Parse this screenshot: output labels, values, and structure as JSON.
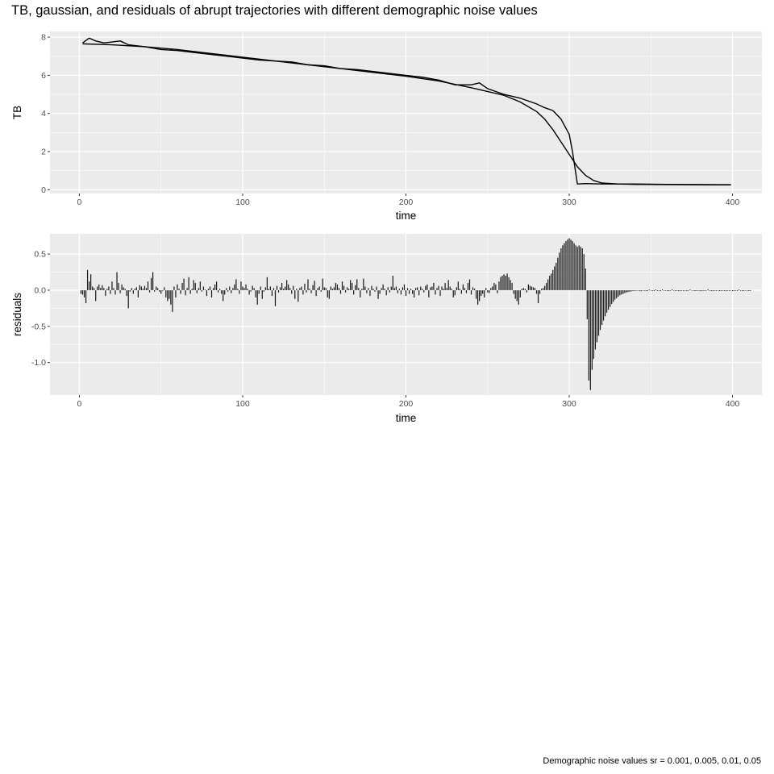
{
  "figure": {
    "title": "TB, gaussian, and residuals of abrupt trajectories with different demographic noise values",
    "caption": "Demographic noise values sr = 0.001, 0.005, 0.01, 0.05"
  },
  "colors": {
    "panel_bg": "#ebebeb",
    "grid_major": "#ffffff",
    "line": "#000000",
    "tick_text": "#4d4d4d"
  },
  "chart_data": [
    {
      "type": "line",
      "xlabel": "time",
      "ylabel": "TB",
      "xlim": [
        -18,
        418
      ],
      "ylim": [
        -0.2,
        8.3
      ],
      "xticks": [
        0,
        100,
        200,
        300,
        400
      ],
      "yticks": [
        0,
        2,
        4,
        6,
        8
      ],
      "grid": true,
      "series": [
        {
          "style": "observed",
          "x": [
            2,
            6,
            10,
            15,
            20,
            25,
            30,
            40,
            50,
            60,
            70,
            80,
            90,
            100,
            110,
            120,
            130,
            140,
            150,
            160,
            170,
            180,
            190,
            200,
            210,
            220,
            230,
            240,
            245,
            250,
            255,
            260,
            270,
            280,
            285,
            290,
            295,
            300,
            302,
            305,
            310,
            320,
            340,
            360,
            380,
            399
          ],
          "y": [
            7.7,
            7.95,
            7.8,
            7.7,
            7.75,
            7.8,
            7.6,
            7.5,
            7.35,
            7.3,
            7.2,
            7.1,
            7.0,
            6.9,
            6.8,
            6.75,
            6.7,
            6.55,
            6.5,
            6.35,
            6.3,
            6.2,
            6.1,
            6.0,
            5.9,
            5.75,
            5.5,
            5.5,
            5.6,
            5.3,
            5.15,
            5.0,
            4.8,
            4.5,
            4.3,
            4.15,
            3.7,
            2.9,
            2.0,
            0.3,
            0.32,
            0.3,
            0.3,
            0.28,
            0.27,
            0.26
          ]
        },
        {
          "style": "gaussian",
          "x": [
            2,
            20,
            40,
            60,
            80,
            100,
            120,
            140,
            160,
            180,
            200,
            220,
            240,
            260,
            270,
            280,
            285,
            290,
            295,
            300,
            305,
            310,
            315,
            320,
            330,
            340,
            360,
            380,
            399
          ],
          "y": [
            7.65,
            7.6,
            7.5,
            7.35,
            7.15,
            6.95,
            6.75,
            6.55,
            6.35,
            6.15,
            5.95,
            5.7,
            5.35,
            4.95,
            4.6,
            4.1,
            3.7,
            3.15,
            2.5,
            1.85,
            1.2,
            0.75,
            0.48,
            0.35,
            0.3,
            0.28,
            0.27,
            0.26,
            0.25
          ]
        }
      ]
    },
    {
      "type": "bar",
      "xlabel": "time",
      "ylabel": "residuals",
      "xlim": [
        -18,
        418
      ],
      "ylim": [
        -1.45,
        0.78
      ],
      "xticks": [
        0,
        100,
        200,
        300,
        400
      ],
      "yticks": [
        -1.0,
        -0.5,
        0.0,
        0.5
      ],
      "ytick_labels": [
        "-1.0",
        "-0.5",
        "0.0",
        "0.5"
      ],
      "grid": true,
      "x_start": 1,
      "values": [
        -0.05,
        -0.06,
        -0.1,
        -0.18,
        0.28,
        0.12,
        0.22,
        0.05,
        0.03,
        -0.15,
        0.05,
        0.08,
        0.03,
        0.07,
        0.03,
        -0.08,
        0.02,
        0.05,
        -0.05,
        0.12,
        0.03,
        -0.06,
        0.25,
        0.1,
        -0.04,
        0.08,
        0.04,
        0.02,
        -0.08,
        -0.25,
        -0.02,
        0.03,
        -0.05,
        0.02,
        0.04,
        -0.1,
        0.07,
        0.05,
        0.02,
        0.06,
        0.03,
        0.12,
        -0.03,
        0.17,
        0.25,
        -0.02,
        0.05,
        0.03,
        -0.02,
        -0.05,
        -0.01,
        0.04,
        -0.1,
        -0.15,
        -0.12,
        -0.2,
        -0.3,
        0.05,
        -0.1,
        0.08,
        0.02,
        -0.05,
        0.1,
        0.16,
        -0.07,
        0.03,
        0.18,
        -0.05,
        0.02,
        0.14,
        0.1,
        -0.04,
        0.03,
        0.12,
        -0.02,
        0.05,
        0.01,
        -0.08,
        0.02,
        0.05,
        -0.1,
        0.03,
        0.08,
        0.12,
        -0.03,
        0.02,
        -0.05,
        -0.15,
        -0.06,
        0.03,
        -0.02,
        0.05,
        -0.04,
        0.03,
        0.08,
        0.15,
        0.02,
        -0.05,
        0.12,
        0.05,
        0.03,
        0.08,
        0.02,
        -0.06,
        -0.02,
        0.06,
        0.03,
        -0.1,
        -0.2,
        -0.05,
        0.05,
        -0.12,
        -0.02,
        0.04,
        0.18,
        0.02,
        0.05,
        -0.08,
        0.03,
        -0.22,
        0.06,
        -0.03,
        0.04,
        0.1,
        0.02,
        0.05,
        0.14,
        0.08,
        0.03,
        -0.05,
        0.06,
        -0.12,
        0.02,
        -0.16,
        0.03,
        0.05,
        -0.06,
        0.09,
        -0.03,
        0.15,
        0.02,
        -0.04,
        0.07,
        0.13,
        -0.08,
        0.03,
        0.05,
        -0.02,
        0.16,
        0.04,
        0.03,
        -0.1,
        -0.12,
        0.05,
        0.02,
        0.04,
        0.1,
        0.08,
        0.03,
        -0.05,
        0.12,
        0.06,
        -0.03,
        0.04,
        0.02,
        0.14,
        0.1,
        -0.06,
        0.07,
        0.15,
        0.03,
        -0.1,
        0.02,
        0.16,
        0.05,
        -0.04,
        0.03,
        -0.08,
        0.06,
        0.02,
        -0.02,
        0.05,
        -0.12,
        -0.05,
        0.03,
        0.08,
        0.02,
        -0.07,
        0.04,
        -0.03,
        0.05,
        0.2,
        0.03,
        0.05,
        -0.04,
        0.02,
        -0.06,
        0.04,
        0.08,
        -0.08,
        0.03,
        -0.05,
        0.02,
        -0.05,
        -0.1,
        0.03,
        0.04,
        -0.07,
        0.05,
        0.02,
        -0.03,
        0.06,
        0.08,
        -0.1,
        0.04,
        0.05,
        0.1,
        -0.06,
        0.03,
        0.06,
        -0.08,
        0.05,
        0.02,
        0.1,
        0.03,
        0.14,
        0.05,
        0.02,
        -0.1,
        -0.07,
        0.04,
        0.12,
        0.02,
        -0.05,
        0.08,
        0.03,
        -0.04,
        0.1,
        0.15,
        -0.06,
        0.04,
        0.02,
        -0.12,
        -0.2,
        -0.15,
        -0.08,
        -0.05,
        -0.1,
        0.03,
        -0.03,
        -0.04,
        0.03,
        0.05,
        0.1,
        0.08,
        -0.04,
        0.12,
        0.18,
        0.2,
        0.22,
        0.2,
        0.23,
        0.18,
        0.14,
        0.1,
        -0.05,
        -0.12,
        -0.15,
        -0.2,
        -0.1,
        0.02,
        0.03,
        0.02,
        -0.03,
        0.08,
        0.06,
        0.05,
        0.04,
        0.03,
        -0.05,
        -0.18,
        -0.05,
        0.02,
        0.03,
        0.06,
        0.1,
        0.15,
        0.2,
        0.23,
        0.28,
        0.33,
        0.38,
        0.45,
        0.52,
        0.58,
        0.62,
        0.65,
        0.68,
        0.7,
        0.72,
        0.7,
        0.68,
        0.65,
        0.62,
        0.6,
        0.62,
        0.6,
        0.58,
        0.5,
        0.3,
        -0.4,
        -1.25,
        -1.38,
        -1.1,
        -0.95,
        -0.82,
        -0.72,
        -0.63,
        -0.55,
        -0.48,
        -0.42,
        -0.36,
        -0.31,
        -0.27,
        -0.23,
        -0.19,
        -0.16,
        -0.13,
        -0.11,
        -0.09,
        -0.07,
        -0.06,
        -0.05,
        -0.04,
        -0.03,
        -0.025,
        -0.02,
        -0.015,
        -0.012,
        -0.01,
        -0.008,
        -0.006,
        -0.01,
        -0.015,
        -0.005,
        -0.008,
        -0.01,
        -0.012,
        0.01,
        -0.006,
        -0.01,
        -0.012,
        0.01,
        -0.01,
        -0.008,
        -0.01,
        0.012,
        -0.006,
        -0.008,
        -0.01,
        -0.012,
        -0.008,
        0.012,
        -0.006,
        -0.01,
        -0.008,
        -0.012,
        -0.01,
        -0.008,
        -0.01,
        -0.006,
        -0.012,
        -0.008,
        0.01,
        -0.006,
        -0.008,
        -0.012,
        -0.01,
        -0.008,
        -0.01,
        -0.012,
        -0.008,
        -0.01,
        -0.006,
        0.012,
        -0.008,
        -0.01,
        -0.012,
        -0.008,
        -0.01,
        -0.006,
        -0.012,
        -0.01,
        -0.008,
        -0.01,
        -0.012,
        -0.008,
        -0.01,
        -0.006,
        -0.012,
        -0.01,
        -0.008,
        -0.01,
        0.01,
        -0.008,
        -0.012,
        -0.01,
        -0.006,
        -0.008,
        -0.012,
        -0.01
      ]
    }
  ]
}
